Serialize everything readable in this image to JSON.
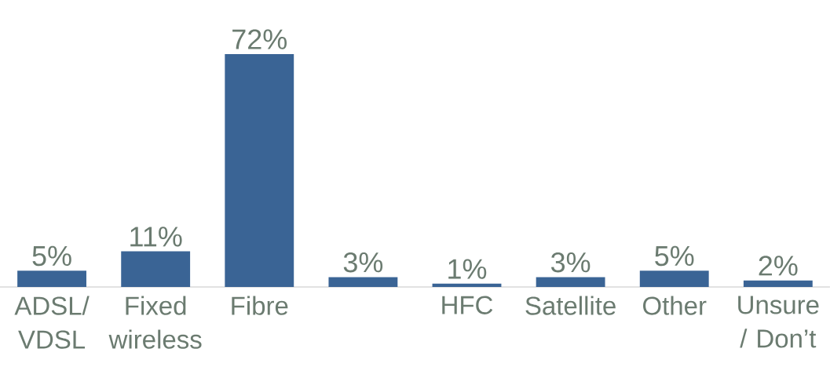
{
  "chart_data": {
    "type": "bar",
    "categories": [
      "ADSL/ VDSL",
      "Fixed wireless",
      "Fibre",
      null,
      "HFC",
      "Satellite",
      "Other",
      "Unsure / Don’t"
    ],
    "values": [
      5,
      11,
      72,
      3,
      1,
      3,
      5,
      2
    ],
    "value_labels": [
      "5%",
      "11%",
      "72%",
      "3%",
      "1%",
      "3%",
      "5%",
      "2%"
    ],
    "color": "#3a6495"
  }
}
